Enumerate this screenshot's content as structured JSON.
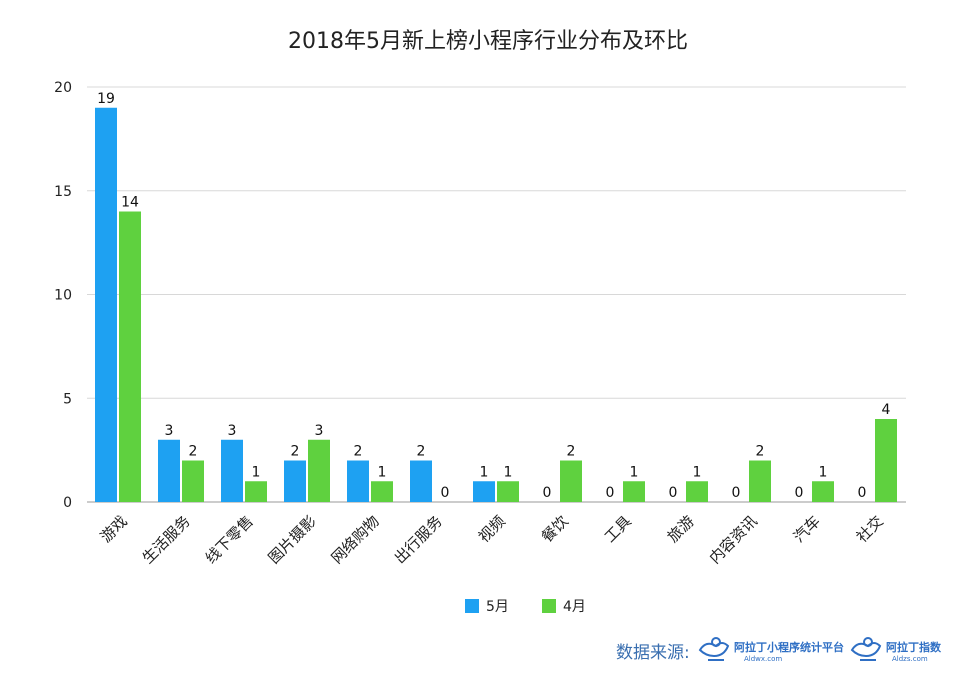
{
  "colors": {
    "may": "#1ea1f2",
    "april": "#5fd13f",
    "grid": "#d8d8d8",
    "axis": "#999999",
    "logo": "#2f6fc4"
  },
  "chart_data": {
    "type": "bar",
    "title": "2018年5月新上榜小程序行业分布及环比",
    "xlabel": "",
    "ylabel": "",
    "ylim": [
      0,
      20
    ],
    "yticks": [
      0,
      5,
      10,
      15,
      20
    ],
    "grid": true,
    "legend_position": "bottom-center",
    "categories": [
      "游戏",
      "生活服务",
      "线下零售",
      "图片摄影",
      "网络购物",
      "出行服务",
      "视频",
      "餐饮",
      "工具",
      "旅游",
      "内容资讯",
      "汽车",
      "社交"
    ],
    "series": [
      {
        "name": "5月",
        "values": [
          19,
          3,
          3,
          2,
          2,
          2,
          1,
          0,
          0,
          0,
          0,
          0,
          0
        ]
      },
      {
        "name": "4月",
        "values": [
          14,
          2,
          1,
          3,
          1,
          0,
          1,
          2,
          1,
          1,
          2,
          1,
          4
        ]
      }
    ]
  },
  "source": {
    "label": "数据来源:",
    "logo1": {
      "name": "阿拉丁小程序统计平台",
      "url_text": "Aldwx.com",
      "icon": "aladdin-lamp-icon"
    },
    "logo2": {
      "name": "阿拉丁指数",
      "url_text": "Aldzs.com",
      "icon": "aladdin-lamp-icon"
    }
  }
}
